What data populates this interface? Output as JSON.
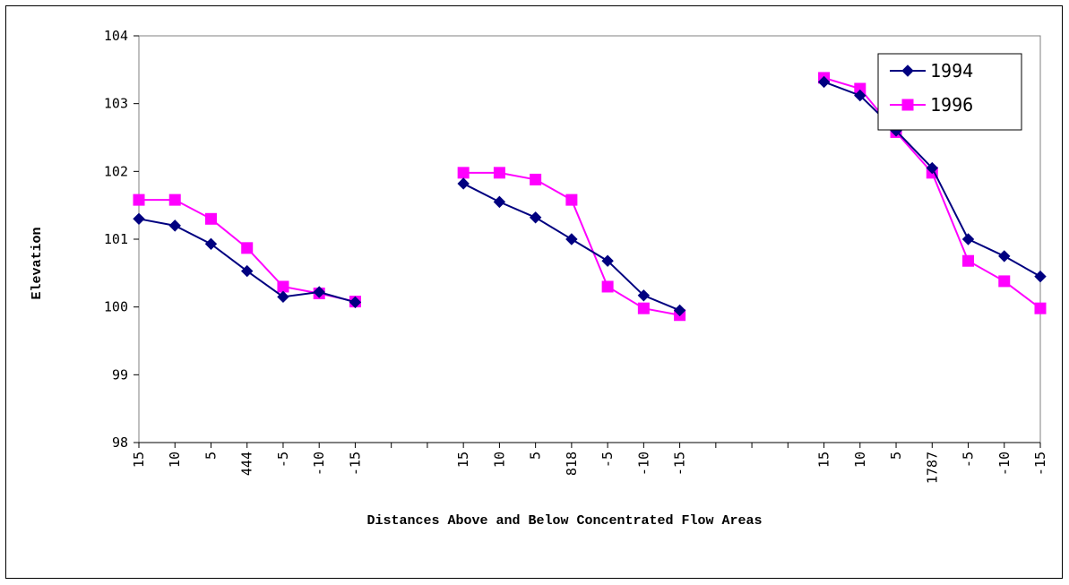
{
  "chart_data": {
    "type": "line",
    "title": "",
    "xlabel": "Distances Above and Below Concentrated Flow Areas",
    "ylabel": "Elevation",
    "ylim": [
      98,
      104
    ],
    "yticks": [
      "98",
      "99",
      "100",
      "101",
      "102",
      "103",
      "104"
    ],
    "categories": [
      "15",
      "10",
      "5",
      "444",
      "-5",
      "-10",
      "-15",
      "",
      "",
      "15",
      "10",
      "5",
      "818",
      "-5",
      "-10",
      "-15",
      "",
      "",
      "",
      "15",
      "10",
      "5",
      "1787",
      "-5",
      "-10",
      "-15"
    ],
    "series": [
      {
        "name": "1994",
        "color": "#000080",
        "marker": "diamond",
        "values": [
          101.3,
          101.2,
          100.93,
          100.53,
          100.15,
          100.22,
          100.07,
          null,
          null,
          101.82,
          101.55,
          101.32,
          101.0,
          100.68,
          100.17,
          99.95,
          null,
          null,
          null,
          103.32,
          103.12,
          102.6,
          102.05,
          101.0,
          100.75,
          100.45
        ]
      },
      {
        "name": "1996",
        "color": "#FF00FF",
        "marker": "square",
        "values": [
          101.58,
          101.58,
          101.3,
          100.87,
          100.3,
          100.2,
          100.08,
          null,
          null,
          101.98,
          101.98,
          101.88,
          101.58,
          100.3,
          99.98,
          99.88,
          null,
          null,
          null,
          103.38,
          103.22,
          102.58,
          101.98,
          100.68,
          100.38,
          99.98
        ]
      }
    ],
    "grid": false,
    "legend_position": "top-right"
  }
}
